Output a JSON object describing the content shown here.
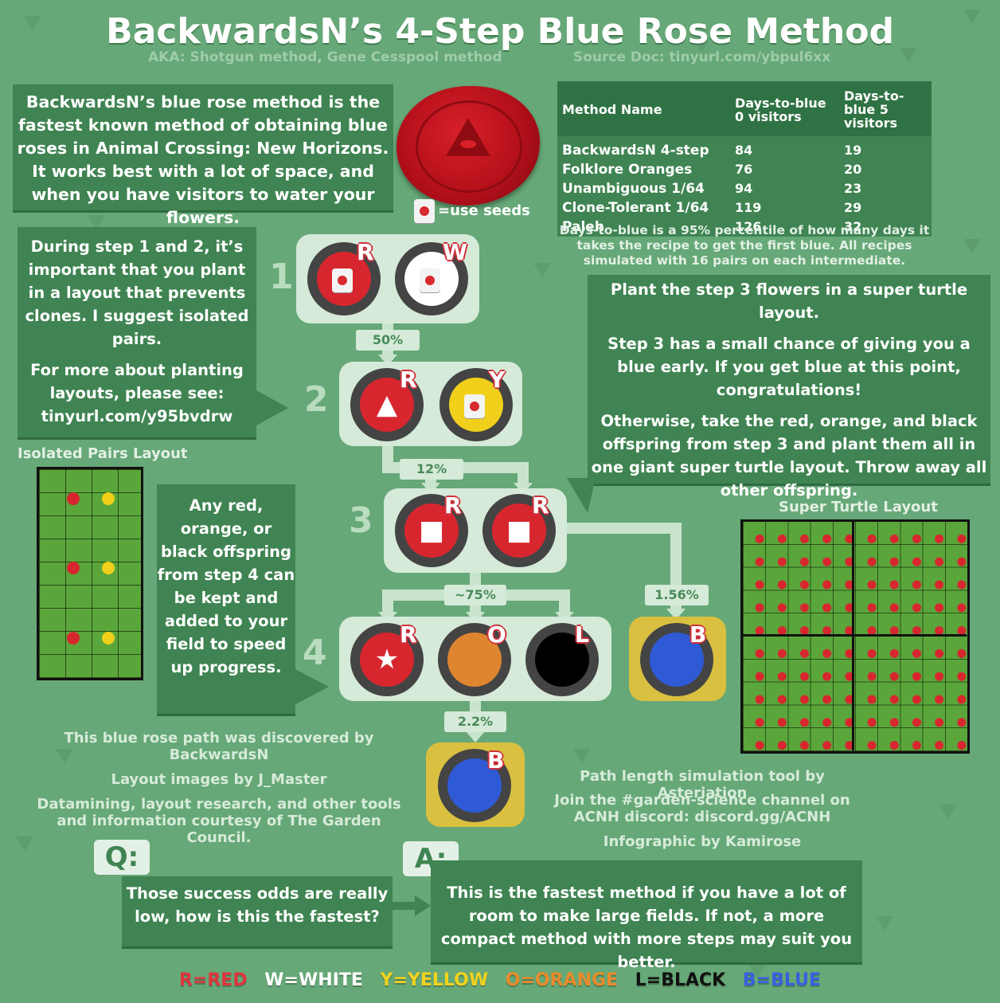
{
  "title": "BackwardsN’s 4-Step Blue Rose Method",
  "aka": "AKA: Shotgun method, Gene Cesspool method",
  "source": "Source Doc: tinyurl.com/ybpul6xx",
  "intro": "BackwardsN’s blue rose method is the fastest known method of obtaining blue roses in Animal Crossing: New Horizons. It works best with a lot of space, and when you have visitors to water your flowers.",
  "use_seeds": "=use seeds",
  "table": {
    "headers": [
      "Method Name",
      "Days-to-blue 0 visitors",
      "Days-to-blue 5 visitors"
    ],
    "rows": [
      [
        "BackwardsN 4-step",
        "84",
        "19"
      ],
      [
        "Folklore Oranges",
        "76",
        "20"
      ],
      [
        "Unambiguous 1/64",
        "94",
        "23"
      ],
      [
        "Clone-Tolerant 1/64",
        "119",
        "29"
      ],
      [
        "Paleh",
        "126",
        "32"
      ]
    ],
    "note": "Days-to-blue is a 95% percentile of how many days it takes the recipe to get the first blue. All recipes simulated with 16 pairs on each intermediate."
  },
  "left_box": {
    "p1": "During step 1 and 2, it’s important that you plant in a layout that prevents clones. I suggest isolated pairs.",
    "p2": "For more about planting layouts, please see: tinyurl.com/y95bvdrw"
  },
  "right_box": {
    "p1": "Plant the step 3 flowers in a super turtle layout.",
    "p2": "Step 3 has a small chance of giving you a blue early. If you get blue at this point, congratulations!",
    "p3": "Otherwise, take the red, orange, and black offspring from step 3 and plant them all in one giant super turtle layout. Throw away all other offspring."
  },
  "step4_box": "Any red, orange, or black offspring from step 4 can be kept and added to your field to speed up progress.",
  "steps": [
    "1",
    "2",
    "3",
    "4"
  ],
  "letters": {
    "r": "R",
    "w": "W",
    "y": "Y",
    "o": "O",
    "l": "L",
    "b": "B"
  },
  "percents": {
    "p50": "50%",
    "p12": "12%",
    "p75": "~75%",
    "p156": "1.56%",
    "p22": "2.2%"
  },
  "layouts": {
    "isolated": "Isolated Pairs Layout",
    "turtle": "Super Turtle Layout"
  },
  "credits_left": {
    "c1": "This blue rose path was discovered by BackwardsN",
    "c2": "Layout images by J_Master",
    "c3": "Datamining, layout research, and other tools and information courtesy of The Garden Council."
  },
  "credits_right": {
    "c1": "Path length simulation tool by Asteriation",
    "c2": "Join the #garden-science channel on ACNH discord: discord.gg/ACNH",
    "c3": "Infographic by Kamirose"
  },
  "qa": {
    "q_label": "Q:",
    "question": "Those success odds are really low, how is this the fastest?",
    "a_label": "A:",
    "answer": "This is the fastest method if you have a lot of room to make large fields. If not, a more compact method with more steps may suit you better."
  },
  "legend": [
    {
      "text": "R=RED",
      "color": "#e0343c"
    },
    {
      "text": "W=WHITE",
      "color": "#ffffff"
    },
    {
      "text": "Y=YELLOW",
      "color": "#f2d21e"
    },
    {
      "text": "O=ORANGE",
      "color": "#e98a2a"
    },
    {
      "text": "L=BLACK",
      "color": "#111111"
    },
    {
      "text": "B=BLUE",
      "color": "#3a5fe0"
    }
  ],
  "colors": {
    "red": "#d8262f",
    "white": "#ffffff",
    "yellow": "#f0d01a",
    "orange": "#de8530",
    "black": "#000000",
    "blue": "#2f5ad6",
    "panel": "#3f8452"
  }
}
